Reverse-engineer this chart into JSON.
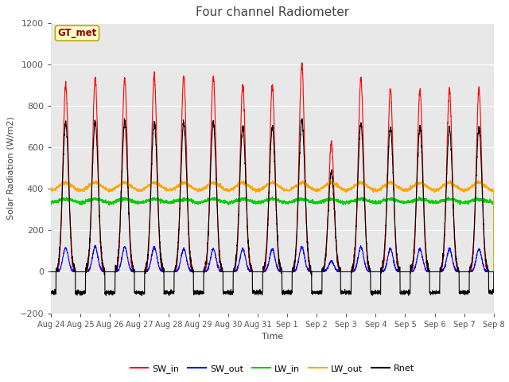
{
  "title": "Four channel Radiometer",
  "xlabel": "Time",
  "ylabel": "Solar Radiation (W/m2)",
  "ylim": [
    -200,
    1200
  ],
  "yticks": [
    -200,
    0,
    200,
    400,
    600,
    800,
    1000,
    1200
  ],
  "n_days": 15,
  "n_points": 3360,
  "annotation_text": "GT_met",
  "annotation_box_facecolor": "#ffffcc",
  "annotation_box_edgecolor": "#bbaa00",
  "fig_bg_color": "#ffffff",
  "plot_bg_color": "#e8e8e8",
  "grid_color": "#ffffff",
  "colors": {
    "SW_in": "#ff0000",
    "SW_out": "#0000ff",
    "LW_in": "#00cc00",
    "LW_out": "#ffa500",
    "Rnet": "#000000"
  },
  "tick_labels": [
    "Aug 24",
    "Aug 25",
    "Aug 26",
    "Aug 27",
    "Aug 28",
    "Aug 29",
    "Aug 30",
    "Aug 31",
    "Sep 1",
    "Sep 2",
    "Sep 3",
    "Sep 4",
    "Sep 5",
    "Sep 6",
    "Sep 7",
    "Sep 8"
  ],
  "sw_in_peaks": [
    900,
    930,
    930,
    945,
    940,
    940,
    900,
    895,
    1000,
    620,
    930,
    880,
    875,
    880,
    880
  ],
  "sw_out_peaks": [
    115,
    120,
    120,
    120,
    110,
    110,
    110,
    110,
    120,
    50,
    120,
    110,
    110,
    110,
    110
  ],
  "rnet_peaks": [
    720,
    725,
    720,
    725,
    720,
    720,
    700,
    695,
    730,
    480,
    715,
    695,
    695,
    690,
    690
  ]
}
